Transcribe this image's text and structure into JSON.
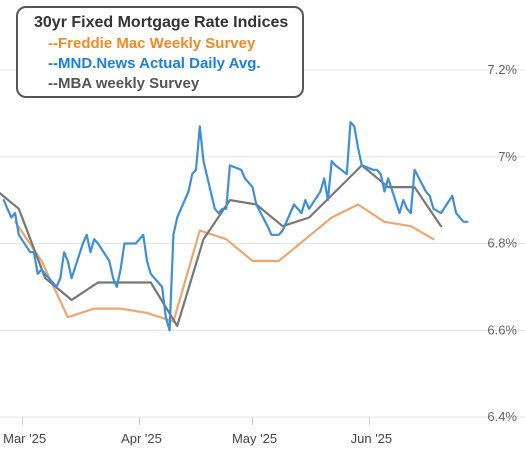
{
  "chart_data": {
    "type": "line",
    "title": "30yr Fixed Mortgage Rate Indices",
    "y_ticks": [
      "6.4%",
      "6.6%",
      "6.8%",
      "7%",
      "7.2%"
    ],
    "y_tick_values": [
      6.4,
      6.6,
      6.8,
      7.0,
      7.2
    ],
    "ylim": [
      6.4,
      7.2
    ],
    "xlim": [
      "2025-02-23",
      "2025-07-03"
    ],
    "x_ticks": [
      {
        "label": "Mar '25",
        "date": "2025-03-01"
      },
      {
        "label": "Apr '25",
        "date": "2025-04-01"
      },
      {
        "label": "May '25",
        "date": "2025-05-01"
      },
      {
        "label": "Jun '25",
        "date": "2025-06-01"
      }
    ],
    "grid": true,
    "legend_position": "top-left",
    "series": [
      {
        "name": "--Freddie Mac Weekly Survey",
        "color": "#f0a56e",
        "points": [
          [
            "2025-02-27",
            6.85
          ],
          [
            "2025-03-06",
            6.76
          ],
          [
            "2025-03-13",
            6.63
          ],
          [
            "2025-03-20",
            6.65
          ],
          [
            "2025-03-27",
            6.65
          ],
          [
            "2025-04-03",
            6.64
          ],
          [
            "2025-04-10",
            6.62
          ],
          [
            "2025-04-17",
            6.83
          ],
          [
            "2025-04-24",
            6.81
          ],
          [
            "2025-05-01",
            6.76
          ],
          [
            "2025-05-08",
            6.76
          ],
          [
            "2025-05-15",
            6.81
          ],
          [
            "2025-05-22",
            6.86
          ],
          [
            "2025-05-29",
            6.89
          ],
          [
            "2025-06-05",
            6.85
          ],
          [
            "2025-06-12",
            6.84
          ],
          [
            "2025-06-18",
            6.81
          ]
        ]
      },
      {
        "name": "--MND.News Actual Daily Avg.",
        "color": "#3d8fd8",
        "points": [
          [
            "2025-02-24",
            6.9
          ],
          [
            "2025-02-25",
            6.88
          ],
          [
            "2025-02-26",
            6.86
          ],
          [
            "2025-02-27",
            6.87
          ],
          [
            "2025-02-28",
            6.82
          ],
          [
            "2025-03-03",
            6.78
          ],
          [
            "2025-03-04",
            6.78
          ],
          [
            "2025-03-05",
            6.73
          ],
          [
            "2025-03-06",
            6.74
          ],
          [
            "2025-03-07",
            6.73
          ],
          [
            "2025-03-10",
            6.7
          ],
          [
            "2025-03-11",
            6.72
          ],
          [
            "2025-03-12",
            6.78
          ],
          [
            "2025-03-13",
            6.76
          ],
          [
            "2025-03-14",
            6.72
          ],
          [
            "2025-03-17",
            6.8
          ],
          [
            "2025-03-18",
            6.82
          ],
          [
            "2025-03-19",
            6.78
          ],
          [
            "2025-03-20",
            6.81
          ],
          [
            "2025-03-21",
            6.8
          ],
          [
            "2025-03-24",
            6.76
          ],
          [
            "2025-03-25",
            6.72
          ],
          [
            "2025-03-26",
            6.7
          ],
          [
            "2025-03-27",
            6.74
          ],
          [
            "2025-03-28",
            6.8
          ],
          [
            "2025-03-31",
            6.8
          ],
          [
            "2025-04-01",
            6.81
          ],
          [
            "2025-04-02",
            6.82
          ],
          [
            "2025-04-03",
            6.76
          ],
          [
            "2025-04-04",
            6.73
          ],
          [
            "2025-04-07",
            6.7
          ],
          [
            "2025-04-08",
            6.63
          ],
          [
            "2025-04-09",
            6.6
          ],
          [
            "2025-04-10",
            6.82
          ],
          [
            "2025-04-11",
            6.86
          ],
          [
            "2025-04-14",
            6.92
          ],
          [
            "2025-04-15",
            6.96
          ],
          [
            "2025-04-16",
            6.97
          ],
          [
            "2025-04-17",
            7.07
          ],
          [
            "2025-04-18",
            6.99
          ],
          [
            "2025-04-21",
            6.88
          ],
          [
            "2025-04-22",
            6.87
          ],
          [
            "2025-04-23",
            6.88
          ],
          [
            "2025-04-24",
            6.88
          ],
          [
            "2025-04-25",
            6.98
          ],
          [
            "2025-04-28",
            6.97
          ],
          [
            "2025-04-29",
            6.95
          ],
          [
            "2025-04-30",
            6.94
          ],
          [
            "2025-05-01",
            6.93
          ],
          [
            "2025-05-02",
            6.89
          ],
          [
            "2025-05-05",
            6.84
          ],
          [
            "2025-05-06",
            6.82
          ],
          [
            "2025-05-07",
            6.82
          ],
          [
            "2025-05-08",
            6.82
          ],
          [
            "2025-05-09",
            6.83
          ],
          [
            "2025-05-12",
            6.89
          ],
          [
            "2025-05-13",
            6.88
          ],
          [
            "2025-05-14",
            6.87
          ],
          [
            "2025-05-15",
            6.9
          ],
          [
            "2025-05-16",
            6.88
          ],
          [
            "2025-05-19",
            6.92
          ],
          [
            "2025-05-20",
            6.95
          ],
          [
            "2025-05-21",
            6.9
          ],
          [
            "2025-05-22",
            6.99
          ],
          [
            "2025-05-23",
            6.98
          ],
          [
            "2025-05-26",
            6.96
          ],
          [
            "2025-05-27",
            7.08
          ],
          [
            "2025-05-28",
            7.07
          ],
          [
            "2025-05-29",
            7.02
          ],
          [
            "2025-05-30",
            6.98
          ],
          [
            "2025-06-02",
            6.97
          ],
          [
            "2025-06-03",
            6.97
          ],
          [
            "2025-06-04",
            6.96
          ],
          [
            "2025-06-05",
            6.92
          ],
          [
            "2025-06-06",
            6.95
          ],
          [
            "2025-06-09",
            6.87
          ],
          [
            "2025-06-10",
            6.9
          ],
          [
            "2025-06-11",
            6.88
          ],
          [
            "2025-06-12",
            6.87
          ],
          [
            "2025-06-13",
            6.97
          ],
          [
            "2025-06-16",
            6.92
          ],
          [
            "2025-06-17",
            6.91
          ],
          [
            "2025-06-18",
            6.88
          ],
          [
            "2025-06-20",
            6.87
          ],
          [
            "2025-06-23",
            6.91
          ],
          [
            "2025-06-24",
            6.87
          ],
          [
            "2025-06-25",
            6.86
          ],
          [
            "2025-06-26",
            6.85
          ],
          [
            "2025-06-27",
            6.85
          ]
        ]
      },
      {
        "name": "--MBA weekly Survey",
        "color": "#777777",
        "points": [
          [
            "2025-02-21",
            6.93
          ],
          [
            "2025-02-28",
            6.88
          ],
          [
            "2025-03-07",
            6.72
          ],
          [
            "2025-03-14",
            6.67
          ],
          [
            "2025-03-21",
            6.71
          ],
          [
            "2025-03-28",
            6.71
          ],
          [
            "2025-04-04",
            6.71
          ],
          [
            "2025-04-11",
            6.61
          ],
          [
            "2025-04-18",
            6.81
          ],
          [
            "2025-04-25",
            6.9
          ],
          [
            "2025-05-02",
            6.89
          ],
          [
            "2025-05-09",
            6.84
          ],
          [
            "2025-05-16",
            6.86
          ],
          [
            "2025-05-23",
            6.92
          ],
          [
            "2025-05-30",
            6.98
          ],
          [
            "2025-06-06",
            6.93
          ],
          [
            "2025-06-13",
            6.93
          ],
          [
            "2025-06-20",
            6.84
          ]
        ]
      }
    ]
  }
}
